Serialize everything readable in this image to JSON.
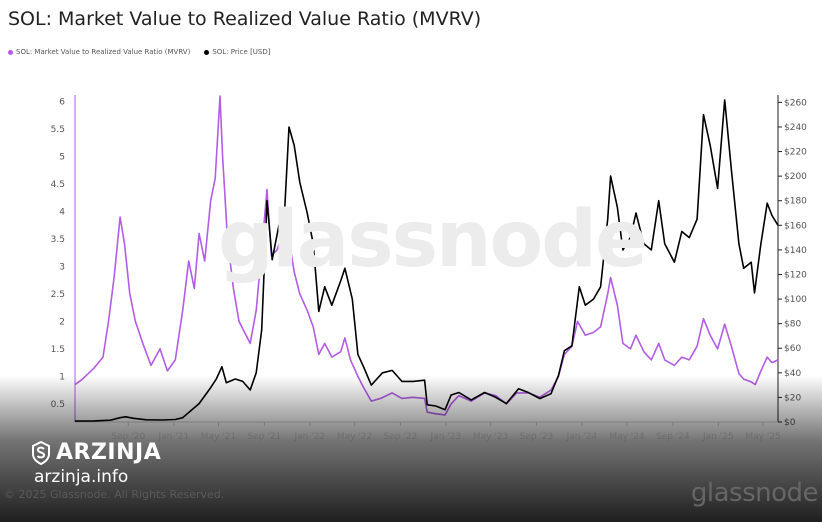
{
  "title": "SOL: Market Value to Realized Value Ratio (MVRV)",
  "copyright": "© 2025 Glassnode. All Rights Reserved.",
  "watermark_center": "glassnode",
  "watermark_corner": "glassnode",
  "brand": {
    "name": "ARZINJA",
    "url": "arzinja.info"
  },
  "colors": {
    "mvrv": "#b35ce6",
    "price": "#000000"
  },
  "chart_data": {
    "type": "line",
    "x_ticks": [
      "Sep '20",
      "Jan '21",
      "May '21",
      "Sep '21",
      "Jan '22",
      "May '22",
      "Sep '22",
      "Jan '23",
      "May '23",
      "Sep '23",
      "Jan '24",
      "May '24",
      "Sep '24",
      "Jan '25",
      "May '25"
    ],
    "y_left_ticks": [
      "0.5",
      "1",
      "1.5",
      "2",
      "2.5",
      "3",
      "3.5",
      "4",
      "4.5",
      "5",
      "5.5",
      "6"
    ],
    "y_right_ticks": [
      "$0",
      "$20",
      "$40",
      "$60",
      "$80",
      "$100",
      "$120",
      "$140",
      "$160",
      "$180",
      "$200",
      "$220",
      "$240",
      "$260"
    ],
    "y_left_range": [
      0.17,
      6.12
    ],
    "y_right_range": [
      0,
      266
    ],
    "x_range": [
      "2020-04-11",
      "2025-06-10"
    ],
    "grid": false,
    "legend_position": "top-left",
    "series": [
      {
        "name": "SOL: Market Value to Realized Value Ratio (MVRV)",
        "axis": "left",
        "points": [
          [
            "2020-04-11",
            0.85
          ],
          [
            "2020-05-01",
            0.95
          ],
          [
            "2020-06-01",
            1.15
          ],
          [
            "2020-06-25",
            1.35
          ],
          [
            "2020-07-10",
            2.0
          ],
          [
            "2020-07-25",
            2.8
          ],
          [
            "2020-08-10",
            3.9
          ],
          [
            "2020-08-22",
            3.4
          ],
          [
            "2020-09-05",
            2.5
          ],
          [
            "2020-09-20",
            2.0
          ],
          [
            "2020-10-10",
            1.6
          ],
          [
            "2020-11-01",
            1.2
          ],
          [
            "2020-11-25",
            1.5
          ],
          [
            "2020-12-15",
            1.1
          ],
          [
            "2021-01-05",
            1.3
          ],
          [
            "2021-01-25",
            2.2
          ],
          [
            "2021-02-10",
            3.1
          ],
          [
            "2021-02-25",
            2.6
          ],
          [
            "2021-03-10",
            3.6
          ],
          [
            "2021-03-25",
            3.1
          ],
          [
            "2021-04-10",
            4.2
          ],
          [
            "2021-04-22",
            4.6
          ],
          [
            "2021-05-05",
            6.1
          ],
          [
            "2021-05-12",
            5.0
          ],
          [
            "2021-05-25",
            3.5
          ],
          [
            "2021-06-10",
            2.6
          ],
          [
            "2021-06-25",
            2.0
          ],
          [
            "2021-07-10",
            1.8
          ],
          [
            "2021-07-25",
            1.6
          ],
          [
            "2021-08-10",
            2.2
          ],
          [
            "2021-08-25",
            3.3
          ],
          [
            "2021-09-08",
            4.4
          ],
          [
            "2021-09-20",
            3.2
          ],
          [
            "2021-10-05",
            3.3
          ],
          [
            "2021-10-20",
            3.6
          ],
          [
            "2021-11-06",
            3.5
          ],
          [
            "2021-11-20",
            2.9
          ],
          [
            "2021-12-05",
            2.5
          ],
          [
            "2021-12-25",
            2.2
          ],
          [
            "2022-01-10",
            1.9
          ],
          [
            "2022-01-25",
            1.4
          ],
          [
            "2022-02-10",
            1.6
          ],
          [
            "2022-03-01",
            1.35
          ],
          [
            "2022-03-25",
            1.45
          ],
          [
            "2022-04-05",
            1.7
          ],
          [
            "2022-04-20",
            1.3
          ],
          [
            "2022-05-10",
            1.0
          ],
          [
            "2022-05-25",
            0.8
          ],
          [
            "2022-06-15",
            0.55
          ],
          [
            "2022-07-10",
            0.6
          ],
          [
            "2022-08-10",
            0.7
          ],
          [
            "2022-09-05",
            0.6
          ],
          [
            "2022-10-05",
            0.62
          ],
          [
            "2022-11-05",
            0.6
          ],
          [
            "2022-11-12",
            0.35
          ],
          [
            "2022-12-05",
            0.32
          ],
          [
            "2022-12-30",
            0.3
          ],
          [
            "2023-01-15",
            0.5
          ],
          [
            "2023-02-05",
            0.65
          ],
          [
            "2023-03-10",
            0.55
          ],
          [
            "2023-04-15",
            0.7
          ],
          [
            "2023-05-15",
            0.65
          ],
          [
            "2023-06-12",
            0.5
          ],
          [
            "2023-07-10",
            0.7
          ],
          [
            "2023-08-10",
            0.7
          ],
          [
            "2023-09-10",
            0.62
          ],
          [
            "2023-10-10",
            0.75
          ],
          [
            "2023-10-30",
            1.0
          ],
          [
            "2023-11-15",
            1.4
          ],
          [
            "2023-12-05",
            1.55
          ],
          [
            "2023-12-20",
            2.0
          ],
          [
            "2024-01-10",
            1.75
          ],
          [
            "2024-02-01",
            1.8
          ],
          [
            "2024-02-20",
            1.9
          ],
          [
            "2024-03-10",
            2.5
          ],
          [
            "2024-03-18",
            2.8
          ],
          [
            "2024-04-05",
            2.3
          ],
          [
            "2024-04-20",
            1.6
          ],
          [
            "2024-05-10",
            1.5
          ],
          [
            "2024-05-25",
            1.75
          ],
          [
            "2024-06-15",
            1.45
          ],
          [
            "2024-07-05",
            1.3
          ],
          [
            "2024-07-25",
            1.6
          ],
          [
            "2024-08-10",
            1.3
          ],
          [
            "2024-09-05",
            1.2
          ],
          [
            "2024-09-25",
            1.35
          ],
          [
            "2024-10-15",
            1.3
          ],
          [
            "2024-11-05",
            1.55
          ],
          [
            "2024-11-22",
            2.05
          ],
          [
            "2024-12-10",
            1.75
          ],
          [
            "2024-12-30",
            1.5
          ],
          [
            "2025-01-18",
            1.95
          ],
          [
            "2025-02-05",
            1.55
          ],
          [
            "2025-02-25",
            1.05
          ],
          [
            "2025-03-10",
            0.95
          ],
          [
            "2025-03-30",
            0.9
          ],
          [
            "2025-04-10",
            0.85
          ],
          [
            "2025-04-25",
            1.1
          ],
          [
            "2025-05-12",
            1.35
          ],
          [
            "2025-05-25",
            1.25
          ],
          [
            "2025-06-10",
            1.3
          ]
        ]
      },
      {
        "name": "SOL: Price [USD]",
        "axis": "right",
        "points": [
          [
            "2020-04-11",
            0.7
          ],
          [
            "2020-06-01",
            0.9
          ],
          [
            "2020-07-15",
            1.5
          ],
          [
            "2020-08-10",
            3.5
          ],
          [
            "2020-08-25",
            4.2
          ],
          [
            "2020-09-15",
            3.0
          ],
          [
            "2020-10-20",
            1.8
          ],
          [
            "2020-12-01",
            1.6
          ],
          [
            "2021-01-05",
            2.0
          ],
          [
            "2021-01-25",
            3.5
          ],
          [
            "2021-02-15",
            9.0
          ],
          [
            "2021-03-10",
            15.0
          ],
          [
            "2021-04-10",
            28.0
          ],
          [
            "2021-04-25",
            35.0
          ],
          [
            "2021-05-10",
            45.0
          ],
          [
            "2021-05-22",
            32.0
          ],
          [
            "2021-06-15",
            35.0
          ],
          [
            "2021-07-05",
            33.0
          ],
          [
            "2021-07-25",
            26.0
          ],
          [
            "2021-08-10",
            40.0
          ],
          [
            "2021-08-25",
            75.0
          ],
          [
            "2021-09-08",
            180.0
          ],
          [
            "2021-09-22",
            132.0
          ],
          [
            "2021-10-10",
            160.0
          ],
          [
            "2021-10-25",
            170.0
          ],
          [
            "2021-11-06",
            240.0
          ],
          [
            "2021-11-20",
            225.0
          ],
          [
            "2021-12-05",
            195.0
          ],
          [
            "2021-12-25",
            170.0
          ],
          [
            "2022-01-10",
            145.0
          ],
          [
            "2022-01-25",
            90.0
          ],
          [
            "2022-02-10",
            110.0
          ],
          [
            "2022-03-01",
            95.0
          ],
          [
            "2022-03-25",
            115.0
          ],
          [
            "2022-04-05",
            125.0
          ],
          [
            "2022-04-25",
            100.0
          ],
          [
            "2022-05-10",
            55.0
          ],
          [
            "2022-05-25",
            45.0
          ],
          [
            "2022-06-15",
            30.0
          ],
          [
            "2022-07-15",
            40.0
          ],
          [
            "2022-08-10",
            42.0
          ],
          [
            "2022-09-05",
            33.0
          ],
          [
            "2022-10-05",
            33.0
          ],
          [
            "2022-11-05",
            34.0
          ],
          [
            "2022-11-12",
            14.0
          ],
          [
            "2022-12-05",
            13.0
          ],
          [
            "2022-12-30",
            10.0
          ],
          [
            "2023-01-15",
            22.0
          ],
          [
            "2023-02-05",
            24.0
          ],
          [
            "2023-03-10",
            18.0
          ],
          [
            "2023-04-15",
            24.0
          ],
          [
            "2023-05-15",
            20.0
          ],
          [
            "2023-06-12",
            15.0
          ],
          [
            "2023-07-15",
            27.0
          ],
          [
            "2023-08-10",
            24.0
          ],
          [
            "2023-09-10",
            19.0
          ],
          [
            "2023-10-10",
            23.0
          ],
          [
            "2023-10-30",
            38.0
          ],
          [
            "2023-11-15",
            58.0
          ],
          [
            "2023-12-05",
            62.0
          ],
          [
            "2023-12-25",
            110.0
          ],
          [
            "2024-01-10",
            95.0
          ],
          [
            "2024-02-01",
            100.0
          ],
          [
            "2024-02-20",
            110.0
          ],
          [
            "2024-03-10",
            165.0
          ],
          [
            "2024-03-18",
            200.0
          ],
          [
            "2024-04-05",
            175.0
          ],
          [
            "2024-04-20",
            140.0
          ],
          [
            "2024-05-10",
            150.0
          ],
          [
            "2024-05-25",
            170.0
          ],
          [
            "2024-06-15",
            145.0
          ],
          [
            "2024-07-05",
            140.0
          ],
          [
            "2024-07-25",
            180.0
          ],
          [
            "2024-08-10",
            145.0
          ],
          [
            "2024-09-05",
            130.0
          ],
          [
            "2024-09-25",
            155.0
          ],
          [
            "2024-10-15",
            150.0
          ],
          [
            "2024-11-05",
            165.0
          ],
          [
            "2024-11-22",
            250.0
          ],
          [
            "2024-12-10",
            225.0
          ],
          [
            "2024-12-30",
            190.0
          ],
          [
            "2025-01-18",
            262.0
          ],
          [
            "2025-02-05",
            205.0
          ],
          [
            "2025-02-25",
            145.0
          ],
          [
            "2025-03-10",
            125.0
          ],
          [
            "2025-03-30",
            130.0
          ],
          [
            "2025-04-08",
            105.0
          ],
          [
            "2025-04-25",
            145.0
          ],
          [
            "2025-05-12",
            178.0
          ],
          [
            "2025-05-25",
            168.0
          ],
          [
            "2025-06-10",
            160.0
          ]
        ]
      }
    ]
  }
}
